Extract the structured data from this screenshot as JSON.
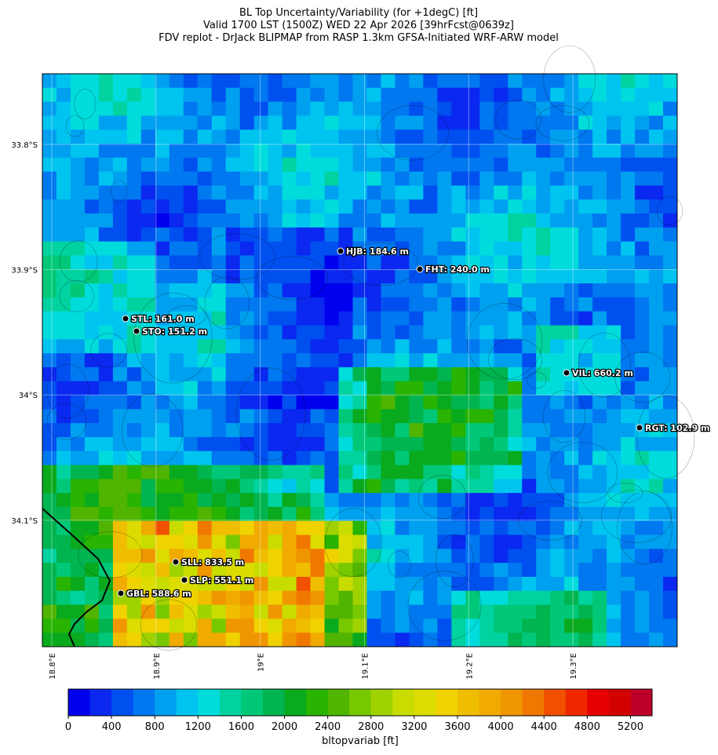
{
  "map": {
    "title_lines": [
      "BL Top Uncertainty/Variability (for +1degC) [ft]",
      "Valid 1700 LST (1500Z) WED 22 Apr 2026 [39hrFcst@0639z]",
      "FDV replot - DrJack BLIPMAP from RASP 1.3km GFSA-Initiated WRF-ARW model"
    ],
    "lat_lim": [
      -34.201,
      -33.7436
    ],
    "lon_lim": [
      18.791,
      19.4
    ],
    "lat_ticks": [
      {
        "value": -33.8,
        "label": "33.8°S"
      },
      {
        "value": -33.9,
        "label": "33.9°S"
      },
      {
        "value": -34.0,
        "label": "34°S"
      },
      {
        "value": -34.1,
        "label": "34.1°S"
      }
    ],
    "lon_ticks": [
      {
        "value": 18.8,
        "label": "18.8°E"
      },
      {
        "value": 18.9,
        "label": "18.9°E"
      },
      {
        "value": 19.0,
        "label": "19°E"
      },
      {
        "value": 19.1,
        "label": "19.1°E"
      },
      {
        "value": 19.2,
        "label": "19.2°E"
      },
      {
        "value": 19.3,
        "label": "19.3°E"
      }
    ],
    "stations": [
      "HJB: 184.6 m",
      "FHT: 240.0 m",
      "STL: 161.0 m",
      "STO: 151.2 m",
      "VIL: 660.2 m",
      "RGT: 102.9 m",
      "SLL: 833.5 m",
      "SLP: 551.1 m",
      "GBL: 588.6 m"
    ],
    "colorbar": {
      "label": "bltopvariab [ft]",
      "lim": [
        0,
        5400
      ],
      "ticks": [
        0,
        400,
        800,
        1200,
        1600,
        2000,
        2400,
        2800,
        3200,
        3600,
        4000,
        4400,
        4800,
        5200
      ],
      "colors": [
        "#0000ee",
        "#0a28f0",
        "#0050f0",
        "#0078f0",
        "#00a0f0",
        "#00c4f0",
        "#00dcdc",
        "#00d2a0",
        "#00c878",
        "#00b450",
        "#0aaa1e",
        "#28b400",
        "#50b400",
        "#78c800",
        "#a0d200",
        "#c8dc00",
        "#dcdc00",
        "#f0d200",
        "#f0be00",
        "#f0aa00",
        "#f09600",
        "#f07800",
        "#f05000",
        "#f02800",
        "#e60000",
        "#d20000",
        "#be0028"
      ]
    }
  }
}
